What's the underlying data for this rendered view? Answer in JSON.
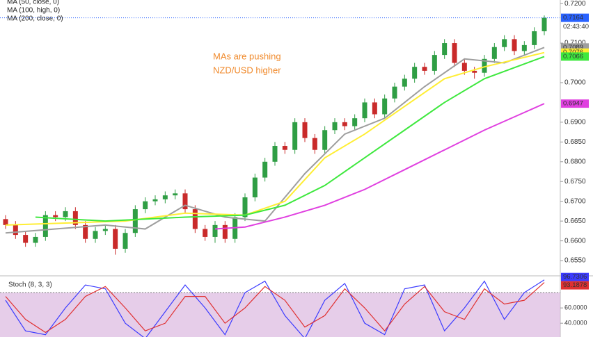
{
  "chart_data": [
    {
      "type": "candlestick",
      "legend": [
        "MA (50, close, 0)",
        "MA (100, high, 0)",
        "MA (200, close, 0)"
      ],
      "annotation": [
        "MAs are pushing",
        "NZD/USD higher"
      ],
      "time_label": "02:43:40",
      "up_color": "#2f9e44",
      "down_color": "#c92a2a",
      "ylim": [
        0.6515,
        0.7209
      ],
      "yticks": [
        {
          "value": 0.72,
          "label": "0.7200"
        },
        {
          "value": 0.71,
          "label": "0.7100"
        },
        {
          "value": 0.7,
          "label": "0.7000"
        },
        {
          "value": 0.69,
          "label": "0.6900"
        },
        {
          "value": 0.685,
          "label": "0.6850"
        },
        {
          "value": 0.68,
          "label": "0.6800"
        },
        {
          "value": 0.675,
          "label": "0.6750"
        },
        {
          "value": 0.67,
          "label": "0.6700"
        },
        {
          "value": 0.665,
          "label": "0.6650"
        },
        {
          "value": 0.66,
          "label": "0.6600"
        },
        {
          "value": 0.655,
          "label": "0.6550"
        }
      ],
      "open": [
        0.6655,
        0.664,
        0.6615,
        0.6595,
        0.661,
        0.6665,
        0.666,
        0.6675,
        0.664,
        0.6605,
        0.6625,
        0.663,
        0.658,
        0.662,
        0.668,
        0.67,
        0.6705,
        0.6715,
        0.672,
        0.668,
        0.663,
        0.661,
        0.664,
        0.6605,
        0.666,
        0.671,
        0.676,
        0.68,
        0.684,
        0.683,
        0.69,
        0.686,
        0.683,
        0.688,
        0.69,
        0.689,
        0.691,
        0.695,
        0.692,
        0.696,
        0.699,
        0.701,
        0.704,
        0.703,
        0.707,
        0.71,
        0.705,
        0.703,
        0.7025,
        0.706,
        0.709,
        0.711,
        0.708,
        0.7095,
        0.713
      ],
      "high": [
        0.6665,
        0.665,
        0.6625,
        0.662,
        0.6675,
        0.6675,
        0.6685,
        0.6685,
        0.665,
        0.6635,
        0.664,
        0.664,
        0.663,
        0.669,
        0.671,
        0.6715,
        0.6725,
        0.673,
        0.673,
        0.669,
        0.664,
        0.665,
        0.665,
        0.667,
        0.672,
        0.677,
        0.681,
        0.685,
        0.685,
        0.691,
        0.691,
        0.687,
        0.689,
        0.691,
        0.691,
        0.692,
        0.696,
        0.696,
        0.697,
        0.7,
        0.702,
        0.705,
        0.705,
        0.708,
        0.711,
        0.711,
        0.706,
        0.704,
        0.707,
        0.71,
        0.712,
        0.712,
        0.7105,
        0.714,
        0.717
      ],
      "low": [
        0.663,
        0.6605,
        0.6585,
        0.6585,
        0.66,
        0.665,
        0.665,
        0.663,
        0.6595,
        0.6595,
        0.6615,
        0.6565,
        0.657,
        0.661,
        0.667,
        0.669,
        0.6695,
        0.6705,
        0.667,
        0.662,
        0.66,
        0.6595,
        0.6595,
        0.6595,
        0.665,
        0.67,
        0.675,
        0.679,
        0.682,
        0.682,
        0.685,
        0.682,
        0.682,
        0.687,
        0.688,
        0.688,
        0.69,
        0.691,
        0.691,
        0.695,
        0.698,
        0.7,
        0.702,
        0.702,
        0.706,
        0.704,
        0.702,
        0.701,
        0.7015,
        0.705,
        0.708,
        0.707,
        0.707,
        0.7085,
        0.712
      ],
      "close": [
        0.664,
        0.6615,
        0.6595,
        0.661,
        0.6665,
        0.666,
        0.6675,
        0.664,
        0.6605,
        0.6625,
        0.663,
        0.658,
        0.662,
        0.668,
        0.67,
        0.6705,
        0.6715,
        0.672,
        0.668,
        0.663,
        0.661,
        0.664,
        0.6605,
        0.666,
        0.671,
        0.676,
        0.68,
        0.684,
        0.683,
        0.69,
        0.686,
        0.683,
        0.688,
        0.69,
        0.689,
        0.691,
        0.695,
        0.692,
        0.696,
        0.699,
        0.701,
        0.704,
        0.703,
        0.707,
        0.71,
        0.705,
        0.703,
        0.7025,
        0.706,
        0.709,
        0.711,
        0.708,
        0.7095,
        0.713,
        0.7164
      ],
      "last_color": "#2962ff",
      "series": [
        {
          "color": "#9e9e9e",
          "x": [
            0,
            5,
            10,
            14,
            18,
            22,
            26,
            30,
            34,
            38,
            42,
            46,
            50,
            54
          ],
          "values": [
            0.662,
            0.663,
            0.664,
            0.663,
            0.669,
            0.666,
            0.665,
            0.677,
            0.687,
            0.691,
            0.699,
            0.706,
            0.705,
            0.7089
          ]
        },
        {
          "color": "#ffee33",
          "x": [
            0,
            6,
            12,
            18,
            24,
            28,
            32,
            36,
            40,
            44,
            48,
            54
          ],
          "values": [
            0.664,
            0.6645,
            0.665,
            0.667,
            0.6665,
            0.67,
            0.681,
            0.687,
            0.694,
            0.701,
            0.704,
            0.7076
          ]
        },
        {
          "color": "#3ee83e",
          "x": [
            3,
            10,
            18,
            24,
            28,
            32,
            36,
            40,
            44,
            48,
            54
          ],
          "values": [
            0.666,
            0.665,
            0.666,
            0.6665,
            0.669,
            0.674,
            0.681,
            0.688,
            0.695,
            0.701,
            0.7066
          ]
        },
        {
          "color": "#e040e0",
          "x": [
            21,
            24,
            28,
            32,
            36,
            40,
            44,
            48,
            54
          ],
          "values": [
            0.663,
            0.6635,
            0.666,
            0.669,
            0.673,
            0.678,
            0.683,
            0.688,
            0.6947
          ]
        }
      ]
    },
    {
      "type": "line",
      "title": "Stoch (8, 3, 3)",
      "ylim": [
        22,
        101
      ],
      "yticks": [
        {
          "value": 60,
          "label": "60.0000"
        },
        {
          "value": 40,
          "label": "40.0000"
        }
      ],
      "band": [
        20,
        80
      ],
      "band_color": "#dcb8e0",
      "series": [
        {
          "color": "#3b3bff",
          "values": [
            70,
            30,
            25,
            60,
            90,
            85,
            40,
            20,
            55,
            90,
            60,
            25,
            80,
            95,
            50,
            20,
            70,
            92,
            40,
            25,
            85,
            90,
            30,
            60,
            95,
            45,
            80,
            96.7306
          ]
        },
        {
          "color": "#e03030",
          "values": [
            75,
            45,
            28,
            45,
            75,
            88,
            60,
            30,
            40,
            75,
            75,
            40,
            60,
            88,
            70,
            35,
            50,
            85,
            60,
            30,
            65,
            88,
            55,
            45,
            85,
            65,
            70,
            93.1878
          ]
        }
      ]
    }
  ]
}
